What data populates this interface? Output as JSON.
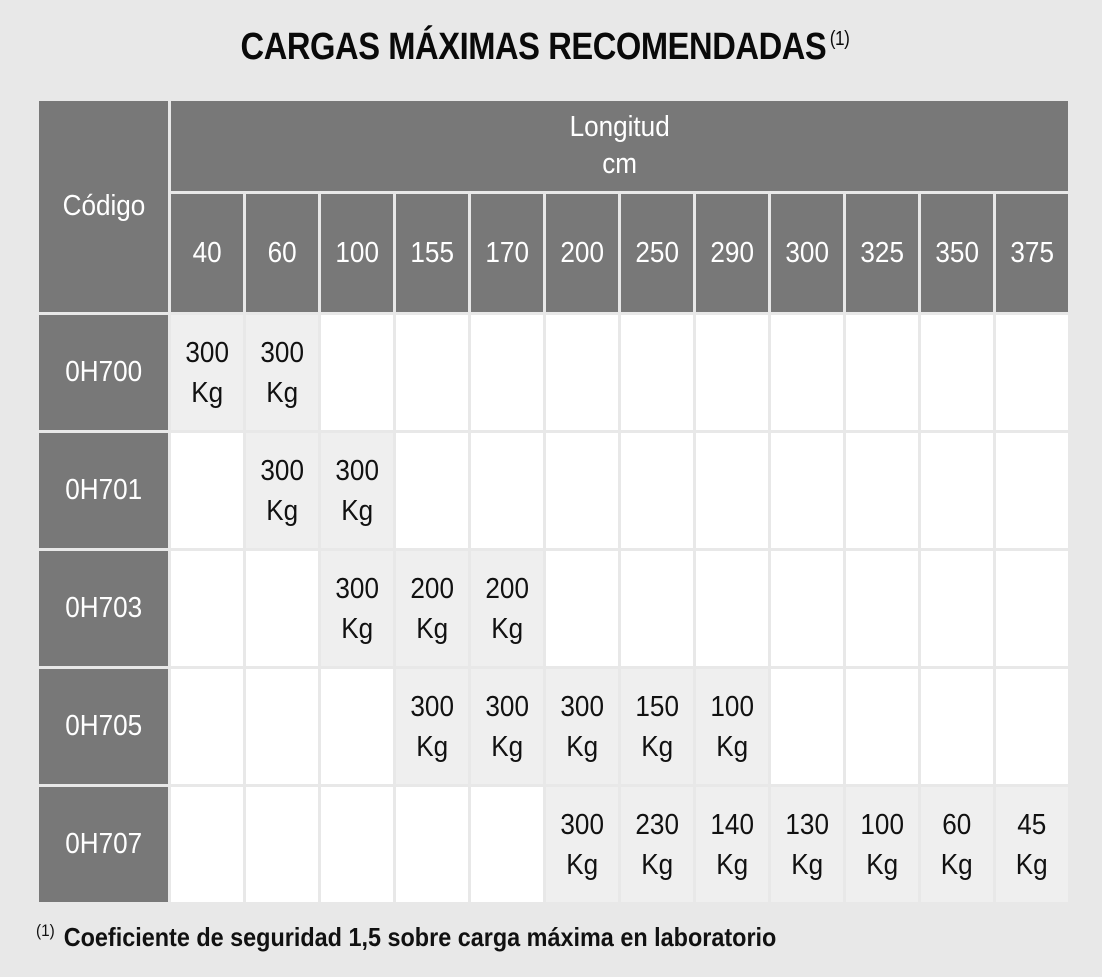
{
  "title": "CARGAS MÁXIMAS RECOMENDADAS",
  "title_note": "(1)",
  "table": {
    "code_header": "Código",
    "length_header": "Longitud",
    "length_unit": "cm",
    "lengths": [
      "40",
      "60",
      "100",
      "155",
      "170",
      "200",
      "250",
      "290",
      "300",
      "325",
      "350",
      "375"
    ],
    "rows": [
      {
        "code": "0H700",
        "cells": [
          [
            "300",
            "Kg"
          ],
          [
            "300",
            "Kg"
          ],
          null,
          null,
          null,
          null,
          null,
          null,
          null,
          null,
          null,
          null
        ]
      },
      {
        "code": "0H701",
        "cells": [
          null,
          [
            "300",
            "Kg"
          ],
          [
            "300",
            "Kg"
          ],
          null,
          null,
          null,
          null,
          null,
          null,
          null,
          null,
          null
        ]
      },
      {
        "code": "0H703",
        "cells": [
          null,
          null,
          [
            "300",
            "Kg"
          ],
          [
            "200",
            "Kg"
          ],
          [
            "200",
            "Kg"
          ],
          null,
          null,
          null,
          null,
          null,
          null,
          null
        ]
      },
      {
        "code": "0H705",
        "cells": [
          null,
          null,
          null,
          [
            "300",
            "Kg"
          ],
          [
            "300",
            "Kg"
          ],
          [
            "300",
            "Kg"
          ],
          [
            "150",
            "Kg"
          ],
          [
            "100",
            "Kg"
          ],
          null,
          null,
          null,
          null
        ]
      },
      {
        "code": "0H707",
        "cells": [
          null,
          null,
          null,
          null,
          null,
          [
            "300",
            "Kg"
          ],
          [
            "230",
            "Kg"
          ],
          [
            "140",
            "Kg"
          ],
          [
            "130",
            "Kg"
          ],
          [
            "100",
            "Kg"
          ],
          [
            "60",
            "Kg"
          ],
          [
            "45",
            "Kg"
          ]
        ]
      }
    ]
  },
  "footnote": {
    "marker": "(1)",
    "text": "Coeficiente de seguridad 1,5 sobre carga máxima en laboratorio"
  },
  "colors": {
    "header_bg": "#787878",
    "filled_cell_bg": "#efefef",
    "empty_cell_bg": "#ffffff",
    "page_bg": "#e8e8e8"
  }
}
